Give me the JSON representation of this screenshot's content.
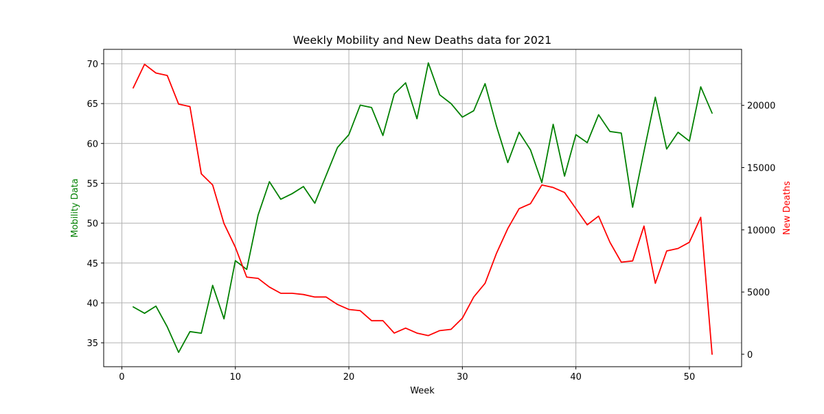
{
  "chart_data": {
    "type": "line",
    "title": "Weekly Mobility and New Deaths data for 2021",
    "xlabel": "Week",
    "ylabel_left": "Mobility Data",
    "ylabel_right": "New Deaths",
    "grid": true,
    "xlim": [
      -1.6,
      54.6
    ],
    "ylim_left": [
      32,
      71.8
    ],
    "ylim_right": [
      -1000,
      24500
    ],
    "x_ticks": [
      0,
      10,
      20,
      30,
      40,
      50
    ],
    "y_ticks_left": [
      35,
      40,
      45,
      50,
      55,
      60,
      65,
      70
    ],
    "y_ticks_right": [
      0,
      5000,
      10000,
      15000,
      20000
    ],
    "x": [
      1,
      2,
      3,
      4,
      5,
      6,
      7,
      8,
      9,
      10,
      11,
      12,
      13,
      14,
      15,
      16,
      17,
      18,
      19,
      20,
      21,
      22,
      23,
      24,
      25,
      26,
      27,
      28,
      29,
      30,
      31,
      32,
      33,
      34,
      35,
      36,
      37,
      38,
      39,
      40,
      41,
      42,
      43,
      44,
      45,
      46,
      47,
      48,
      49,
      50,
      51,
      52
    ],
    "series": [
      {
        "axis": "left",
        "color": "#008000",
        "values": [
          39.5,
          38.7,
          39.6,
          37.0,
          33.8,
          36.4,
          36.2,
          42.2,
          38.0,
          45.3,
          44.2,
          51.0,
          55.2,
          53.0,
          53.7,
          54.6,
          52.5,
          56.0,
          59.5,
          61.1,
          64.8,
          64.5,
          61.0,
          66.2,
          67.6,
          63.1,
          70.1,
          66.1,
          65.0,
          63.3,
          64.1,
          67.5,
          62.2,
          57.6,
          61.4,
          59.2,
          55.1,
          62.4,
          55.9,
          61.1,
          60.1,
          63.6,
          61.5,
          61.3,
          52.0,
          59.0,
          65.8,
          59.3,
          61.4,
          60.3,
          67.1,
          63.8
        ]
      },
      {
        "axis": "right",
        "color": "#ff0000",
        "values": [
          21400,
          23300,
          22600,
          22400,
          20100,
          19900,
          14500,
          13600,
          10500,
          8600,
          6200,
          6100,
          5400,
          4900,
          4900,
          4800,
          4600,
          4600,
          4000,
          3600,
          3500,
          2700,
          2700,
          1700,
          2100,
          1700,
          1500,
          1900,
          2000,
          2900,
          4600,
          5700,
          8100,
          10100,
          11700,
          12100,
          13600,
          13400,
          13000,
          11700,
          10400,
          11100,
          9000,
          7400,
          7500,
          10300,
          5700,
          8300,
          8500,
          9000,
          11000,
          0
        ]
      }
    ]
  }
}
